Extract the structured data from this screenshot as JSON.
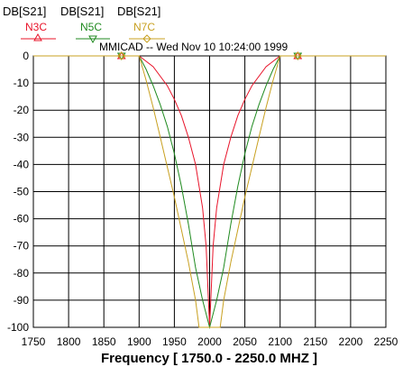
{
  "chart_data": {
    "type": "line",
    "title": "MMICAD -- Wed Nov 10 10:24:00 1999",
    "xlabel": "Frequency [ 1750.0 - 2250.0 MHZ ]",
    "ylabel": "",
    "xlim": [
      1750,
      2250
    ],
    "ylim": [
      -100,
      0
    ],
    "x_ticks": [
      1750,
      1800,
      1850,
      1900,
      1950,
      2000,
      2050,
      2100,
      2150,
      2200,
      2250
    ],
    "y_ticks": [
      0,
      -10,
      -20,
      -30,
      -40,
      -50,
      -60,
      -70,
      -80,
      -90,
      -100
    ],
    "grid": true,
    "legend_position": "top-left",
    "series": [
      {
        "measure": "DB[S21]",
        "name": "N3C",
        "color": "#e8142a",
        "marker": "triangle-up",
        "marker_x": [
          1875,
          2125
        ],
        "x": [
          1750,
          1900,
          1920,
          1940,
          1950,
          1960,
          1970,
          1980,
          1990,
          1995,
          2000,
          2005,
          2010,
          2020,
          2030,
          2040,
          2050,
          2060,
          2080,
          2100,
          2250
        ],
        "y": [
          0,
          0,
          -4,
          -11,
          -16,
          -22,
          -30,
          -40,
          -56,
          -70,
          -100,
          -70,
          -56,
          -40,
          -30,
          -22,
          -16,
          -11,
          -4,
          0,
          0
        ]
      },
      {
        "measure": "DB[S21]",
        "name": "N5C",
        "color": "#1f8a1f",
        "marker": "triangle-down",
        "marker_x": [
          1875,
          2125
        ],
        "x": [
          1750,
          1900,
          1910,
          1920,
          1930,
          1940,
          1950,
          1960,
          1970,
          1980,
          1990,
          2000,
          2010,
          2020,
          2030,
          2040,
          2050,
          2060,
          2070,
          2080,
          2090,
          2100,
          2250
        ],
        "y": [
          0,
          0,
          -5,
          -11,
          -18,
          -26,
          -36,
          -48,
          -62,
          -78,
          -90,
          -100,
          -90,
          -78,
          -62,
          -48,
          -36,
          -26,
          -18,
          -11,
          -5,
          0,
          0
        ]
      },
      {
        "measure": "DB[S21]",
        "name": "N7C",
        "color": "#c8a020",
        "marker": "diamond",
        "marker_x": [
          1875,
          2125
        ],
        "x": [
          1750,
          1900,
          1910,
          1920,
          1930,
          1940,
          1950,
          1960,
          1970,
          1980,
          1985,
          2015,
          2020,
          2030,
          2040,
          2050,
          2060,
          2070,
          2080,
          2090,
          2100,
          2250
        ],
        "y": [
          0,
          0,
          -9,
          -19,
          -30,
          -41,
          -52,
          -64,
          -76,
          -90,
          -100,
          -100,
          -90,
          -76,
          -64,
          -52,
          -41,
          -30,
          -19,
          -9,
          0,
          0
        ]
      }
    ]
  }
}
